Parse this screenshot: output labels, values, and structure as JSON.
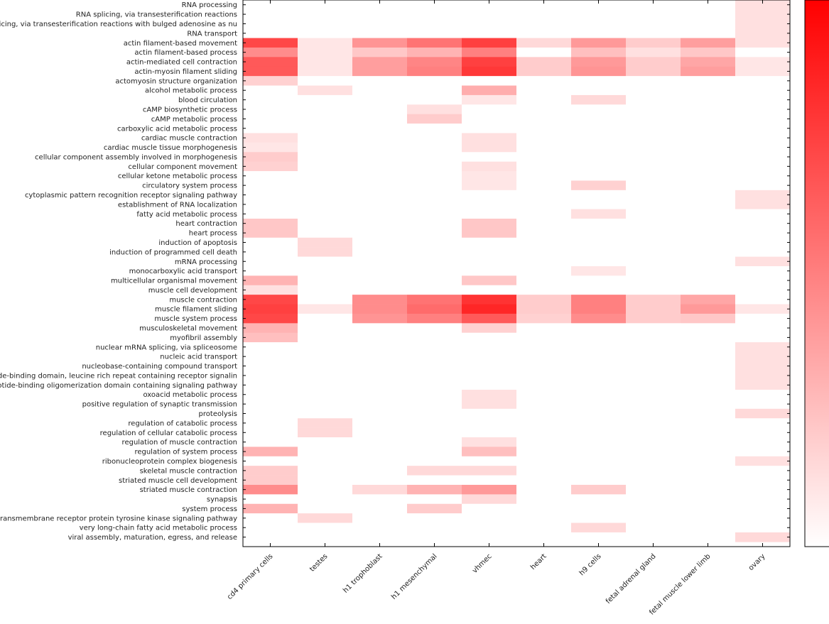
{
  "chart_data": {
    "type": "heatmap",
    "title": "",
    "xlabel": "",
    "ylabel": "",
    "colorbar": {
      "min_color": "#ffffff",
      "max_color": "#ff0000",
      "tick_labels": []
    },
    "x_categories": [
      "cd4 primary cells",
      "testes",
      "h1 trophoblast",
      "h1 mesenchymal",
      "vhmec",
      "heart",
      "h9 cells",
      "fetal adrenal gland",
      "fetal muscle lower limb",
      "ovary"
    ],
    "y_categories": [
      "RNA processing",
      "RNA splicing, via transesterification reactions",
      "RNA splicing, via transesterification reactions with bulged adenosine as nu",
      "RNA transport",
      "actin filament-based movement",
      "actin filament-based process",
      "actin-mediated cell contraction",
      "actin-myosin filament sliding",
      "actomyosin structure organization",
      "alcohol metabolic process",
      "blood circulation",
      "cAMP biosynthetic process",
      "cAMP metabolic process",
      "carboxylic acid metabolic process",
      "cardiac muscle contraction",
      "cardiac muscle tissue morphogenesis",
      "cellular component assembly involved in morphogenesis",
      "cellular component movement",
      "cellular ketone metabolic process",
      "circulatory system process",
      "cytoplasmic pattern recognition receptor signaling pathway",
      "establishment of RNA localization",
      "fatty acid metabolic process",
      "heart contraction",
      "heart process",
      "induction of apoptosis",
      "induction of programmed cell death",
      "mRNA processing",
      "monocarboxylic acid transport",
      "multicellular organismal movement",
      "muscle cell development",
      "muscle contraction",
      "muscle filament sliding",
      "muscle system process",
      "musculoskeletal movement",
      "myofibril assembly",
      "nuclear mRNA splicing, via spliceosome",
      "nucleic acid transport",
      "nucleobase-containing compound transport",
      "nucleotide-binding domain, leucine rich repeat containing receptor signalin",
      "nucleotide-binding oligomerization domain containing signaling pathway",
      "oxoacid metabolic process",
      "positive regulation of synaptic transmission",
      "proteolysis",
      "regulation of catabolic process",
      "regulation of cellular catabolic process",
      "regulation of muscle contraction",
      "regulation of system process",
      "ribonucleoprotein complex biogenesis",
      "skeletal muscle contraction",
      "striated muscle cell development",
      "striated muscle contraction",
      "synapsis",
      "system process",
      "transmembrane receptor protein tyrosine kinase signaling pathway",
      "very long-chain fatty acid metabolic process",
      "viral assembly, maturation, egress, and release"
    ],
    "values": [
      [
        0,
        0,
        0,
        0,
        0,
        0,
        0,
        0,
        0,
        0.12
      ],
      [
        0,
        0,
        0,
        0,
        0,
        0,
        0,
        0,
        0,
        0.12
      ],
      [
        0,
        0,
        0,
        0,
        0,
        0,
        0,
        0,
        0,
        0.12
      ],
      [
        0,
        0,
        0,
        0,
        0,
        0,
        0,
        0,
        0,
        0.12
      ],
      [
        0.72,
        0.1,
        0.42,
        0.55,
        0.75,
        0.15,
        0.4,
        0.2,
        0.38,
        0.12
      ],
      [
        0.45,
        0.1,
        0.22,
        0.3,
        0.5,
        0,
        0.25,
        0.12,
        0.22,
        0
      ],
      [
        0.65,
        0.1,
        0.38,
        0.48,
        0.75,
        0.2,
        0.4,
        0.2,
        0.35,
        0.1
      ],
      [
        0.65,
        0.1,
        0.38,
        0.5,
        0.78,
        0.2,
        0.42,
        0.2,
        0.38,
        0.1
      ],
      [
        0.18,
        0,
        0,
        0,
        0,
        0,
        0,
        0,
        0,
        0
      ],
      [
        0,
        0.12,
        0,
        0,
        0.32,
        0,
        0,
        0,
        0,
        0
      ],
      [
        0,
        0,
        0,
        0,
        0.1,
        0,
        0.15,
        0,
        0,
        0
      ],
      [
        0,
        0,
        0,
        0.12,
        0,
        0,
        0,
        0,
        0,
        0
      ],
      [
        0,
        0,
        0,
        0.2,
        0,
        0,
        0,
        0,
        0,
        0
      ],
      [
        0,
        0,
        0,
        0,
        0,
        0,
        0,
        0,
        0,
        0
      ],
      [
        0.12,
        0,
        0,
        0,
        0.12,
        0,
        0,
        0,
        0,
        0
      ],
      [
        0.1,
        0,
        0,
        0,
        0.12,
        0,
        0,
        0,
        0,
        0
      ],
      [
        0.2,
        0,
        0,
        0,
        0,
        0,
        0,
        0,
        0,
        0
      ],
      [
        0.18,
        0,
        0,
        0,
        0.12,
        0,
        0,
        0,
        0,
        0
      ],
      [
        0,
        0,
        0,
        0,
        0.1,
        0,
        0,
        0,
        0,
        0
      ],
      [
        0,
        0,
        0,
        0,
        0.1,
        0,
        0.18,
        0,
        0,
        0
      ],
      [
        0,
        0,
        0,
        0,
        0,
        0,
        0,
        0,
        0,
        0.12
      ],
      [
        0,
        0,
        0,
        0,
        0,
        0,
        0,
        0,
        0,
        0.12
      ],
      [
        0,
        0,
        0,
        0,
        0,
        0,
        0.12,
        0,
        0,
        0
      ],
      [
        0.22,
        0,
        0,
        0,
        0.22,
        0,
        0,
        0,
        0,
        0
      ],
      [
        0.22,
        0,
        0,
        0,
        0.22,
        0,
        0,
        0,
        0,
        0
      ],
      [
        0,
        0.15,
        0,
        0,
        0,
        0,
        0,
        0,
        0,
        0
      ],
      [
        0,
        0.15,
        0,
        0,
        0,
        0,
        0,
        0,
        0,
        0
      ],
      [
        0,
        0,
        0,
        0,
        0,
        0,
        0,
        0,
        0,
        0.12
      ],
      [
        0,
        0,
        0,
        0,
        0,
        0,
        0.1,
        0,
        0,
        0
      ],
      [
        0.3,
        0,
        0,
        0,
        0.22,
        0,
        0,
        0,
        0,
        0
      ],
      [
        0.12,
        0,
        0,
        0,
        0,
        0,
        0,
        0,
        0,
        0
      ],
      [
        0.72,
        0,
        0.45,
        0.55,
        0.8,
        0.2,
        0.5,
        0.2,
        0.35,
        0
      ],
      [
        0.75,
        0.1,
        0.45,
        0.58,
        0.85,
        0.2,
        0.5,
        0.2,
        0.4,
        0.1
      ],
      [
        0.72,
        0,
        0.42,
        0.5,
        0.65,
        0.18,
        0.45,
        0.2,
        0.22,
        0
      ],
      [
        0.3,
        0,
        0,
        0,
        0.18,
        0,
        0,
        0,
        0,
        0
      ],
      [
        0.25,
        0,
        0,
        0,
        0,
        0,
        0,
        0,
        0,
        0
      ],
      [
        0,
        0,
        0,
        0,
        0,
        0,
        0,
        0,
        0,
        0.12
      ],
      [
        0,
        0,
        0,
        0,
        0,
        0,
        0,
        0,
        0,
        0.12
      ],
      [
        0,
        0,
        0,
        0,
        0,
        0,
        0,
        0,
        0,
        0.12
      ],
      [
        0,
        0,
        0,
        0,
        0,
        0,
        0,
        0,
        0,
        0.12
      ],
      [
        0,
        0,
        0,
        0,
        0,
        0,
        0,
        0,
        0,
        0.12
      ],
      [
        0,
        0,
        0,
        0,
        0.12,
        0,
        0,
        0,
        0,
        0
      ],
      [
        0,
        0,
        0,
        0,
        0.12,
        0,
        0,
        0,
        0,
        0
      ],
      [
        0,
        0,
        0,
        0,
        0,
        0,
        0,
        0,
        0,
        0.15
      ],
      [
        0,
        0.15,
        0,
        0,
        0,
        0,
        0,
        0,
        0,
        0
      ],
      [
        0,
        0.15,
        0,
        0,
        0,
        0,
        0,
        0,
        0,
        0
      ],
      [
        0,
        0,
        0,
        0,
        0.12,
        0,
        0,
        0,
        0,
        0
      ],
      [
        0.3,
        0,
        0,
        0,
        0.25,
        0,
        0,
        0,
        0,
        0
      ],
      [
        0,
        0,
        0,
        0,
        0,
        0,
        0,
        0,
        0,
        0.12
      ],
      [
        0.2,
        0,
        0,
        0.15,
        0.15,
        0,
        0,
        0,
        0,
        0
      ],
      [
        0.2,
        0,
        0,
        0,
        0,
        0,
        0,
        0,
        0,
        0
      ],
      [
        0.45,
        0,
        0.15,
        0.3,
        0.4,
        0,
        0.2,
        0,
        0,
        0
      ],
      [
        0,
        0,
        0,
        0,
        0.15,
        0,
        0,
        0,
        0,
        0
      ],
      [
        0.3,
        0,
        0,
        0.2,
        0,
        0,
        0,
        0,
        0,
        0
      ],
      [
        0,
        0.15,
        0,
        0,
        0,
        0,
        0,
        0,
        0,
        0
      ],
      [
        0,
        0,
        0,
        0,
        0,
        0,
        0.15,
        0,
        0,
        0
      ],
      [
        0,
        0,
        0,
        0,
        0,
        0,
        0,
        0,
        0,
        0.15
      ]
    ]
  }
}
